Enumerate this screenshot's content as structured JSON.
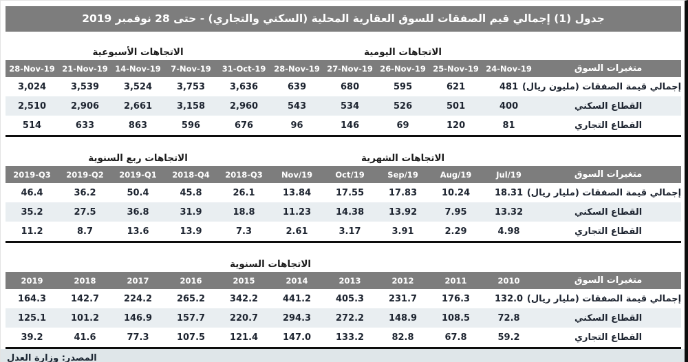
{
  "title": "جدول (1) إجمالي قيم الصفقات للسوق العقارية المحلية (السكني والتجاري) - حتى 28 نوفمبر 2019",
  "source": "المصدر: وزارة العدل",
  "label_column_header": "متغيرات السوق",
  "colors": {
    "header_gray": "#7d7d7d",
    "stripe_row": "#e9eef1",
    "footer_bg": "#dfe6e9",
    "text_dark": "#1d2430",
    "divider_black": "#0d0d0d"
  },
  "tables": [
    {
      "groups": [
        {
          "label": "الاتجاهات الأسبوعية",
          "span": 5
        },
        {
          "label": "الاتجاهات اليومية",
          "span": 5
        }
      ],
      "columns": [
        "28-Nov-19",
        "21-Nov-19",
        "14-Nov-19",
        "7-Nov-19",
        "31-Oct-19",
        "28-Nov-19",
        "27-Nov-19",
        "26-Nov-19",
        "25-Nov-19",
        "24-Nov-19"
      ],
      "rows": [
        {
          "label": "إجمالي قيمة الصفقات (مليون ريال)",
          "values": [
            "3,024",
            "3,539",
            "3,524",
            "3,753",
            "3,636",
            "639",
            "680",
            "595",
            "621",
            "481"
          ]
        },
        {
          "label": "القطاع السكني",
          "values": [
            "2,510",
            "2,906",
            "2,661",
            "3,158",
            "2,960",
            "543",
            "534",
            "526",
            "501",
            "400"
          ]
        },
        {
          "label": "القطاع التجاري",
          "values": [
            "514",
            "633",
            "863",
            "596",
            "676",
            "96",
            "146",
            "69",
            "120",
            "81"
          ]
        }
      ]
    },
    {
      "groups": [
        {
          "label": "الاتجاهات ربع السنوية",
          "span": 5
        },
        {
          "label": "الاتجاهات الشهرية",
          "span": 5
        }
      ],
      "columns": [
        "2019-Q3",
        "2019-Q2",
        "2019-Q1",
        "2018-Q4",
        "2018-Q3",
        "Nov/19",
        "Oct/19",
        "Sep/19",
        "Aug/19",
        "Jul/19"
      ],
      "rows": [
        {
          "label": "إجمالي قيمة الصفقات (مليار ريال)",
          "values": [
            "46.4",
            "36.2",
            "50.4",
            "45.8",
            "26.1",
            "13.84",
            "17.55",
            "17.83",
            "10.24",
            "18.31"
          ]
        },
        {
          "label": "القطاع السكني",
          "values": [
            "35.2",
            "27.5",
            "36.8",
            "31.9",
            "18.8",
            "11.23",
            "14.38",
            "13.92",
            "7.95",
            "13.32"
          ]
        },
        {
          "label": "القطاع التجاري",
          "values": [
            "11.2",
            "8.7",
            "13.6",
            "13.9",
            "7.3",
            "2.61",
            "3.17",
            "3.91",
            "2.29",
            "4.98"
          ]
        }
      ]
    },
    {
      "groups": [
        {
          "label": "الاتجاهات السنوية",
          "span": 10
        }
      ],
      "columns": [
        "2019",
        "2018",
        "2017",
        "2016",
        "2015",
        "2014",
        "2013",
        "2012",
        "2011",
        "2010"
      ],
      "rows": [
        {
          "label": "إجمالي قيمة الصفقات (مليار ريال)",
          "values": [
            "164.3",
            "142.7",
            "224.2",
            "265.2",
            "342.2",
            "441.2",
            "405.3",
            "231.7",
            "176.3",
            "132.0"
          ]
        },
        {
          "label": "القطاع السكني",
          "values": [
            "125.1",
            "101.2",
            "146.9",
            "157.7",
            "220.7",
            "294.3",
            "272.2",
            "148.9",
            "108.5",
            "72.8"
          ]
        },
        {
          "label": "القطاع التجاري",
          "values": [
            "39.2",
            "41.6",
            "77.3",
            "107.5",
            "121.4",
            "147.0",
            "133.2",
            "82.8",
            "67.8",
            "59.2"
          ]
        }
      ]
    }
  ]
}
